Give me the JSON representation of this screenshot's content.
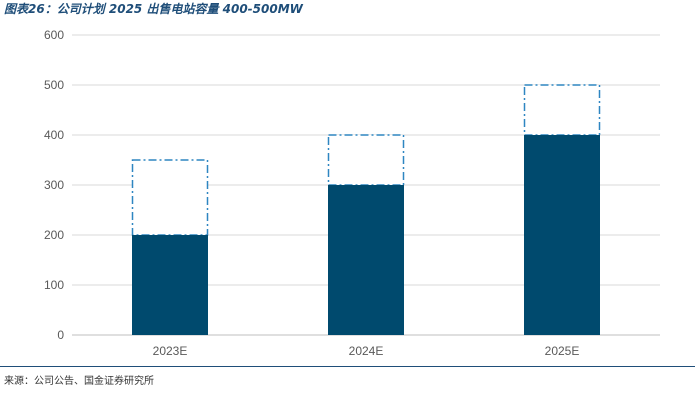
{
  "header": {
    "title": "图表26：公司计划 2025 出售电站容量 400-500MW"
  },
  "footer": {
    "source": "来源：公司公告、国金证券研究所"
  },
  "colors": {
    "bar": "#004a6e",
    "target_outline": "#2e86c1",
    "grid": "#d9d9d9",
    "axis_text": "#595959",
    "rule": "#1f4e79"
  },
  "chart_data": {
    "type": "bar",
    "title": "图表26：公司计划 2025 出售电站容量 400-500MW",
    "categories": [
      "2023E",
      "2024E",
      "2025E"
    ],
    "series": [
      {
        "values": [
          200,
          300,
          400
        ]
      },
      {
        "values": [
          350,
          400,
          500
        ],
        "style": "dash-dot outline"
      }
    ],
    "yticks": [
      "0",
      "100",
      "200",
      "300",
      "400",
      "500",
      "600"
    ],
    "ylim": [
      0,
      600
    ],
    "xlabel": "",
    "ylabel": "",
    "grid": true,
    "legend": "none"
  }
}
